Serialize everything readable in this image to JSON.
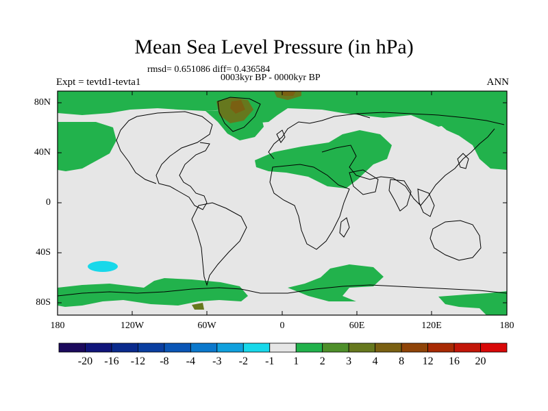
{
  "header": {
    "title": "Mean Sea Level Pressure (in hPa)",
    "stats": "rmsd= 0.651086 diff= 0.436584",
    "period": "0003kyr BP - 0000kyr BP",
    "experiment": "Expt = tevtd1-tevta1",
    "season": "ANN"
  },
  "axes": {
    "lat_labels": [
      "80N",
      "40N",
      "0",
      "40S",
      "80S"
    ],
    "lon_labels": [
      "180",
      "120W",
      "60W",
      "0",
      "60E",
      "120E",
      "180"
    ]
  },
  "colorbar": {
    "labels": [
      "-20",
      "-16",
      "-12",
      "-8",
      "-4",
      "-3",
      "-2",
      "-1",
      "1",
      "2",
      "3",
      "4",
      "8",
      "12",
      "16",
      "20"
    ],
    "colors": [
      "#1c0a5c",
      "#10157a",
      "#0a2a8c",
      "#0a3ea0",
      "#0a55b5",
      "#0b78cc",
      "#10a0dd",
      "#18d8ea",
      "#e6e6e6",
      "#22b24c",
      "#4e8f2a",
      "#66781e",
      "#7a6012",
      "#8f4408",
      "#a82a04",
      "#c21608",
      "#d80808"
    ]
  },
  "colors": {
    "background": "#e6e6e6",
    "green": "#22b24c",
    "olive": "#66781e",
    "brown": "#7a6012",
    "cyan": "#18d8ea"
  }
}
